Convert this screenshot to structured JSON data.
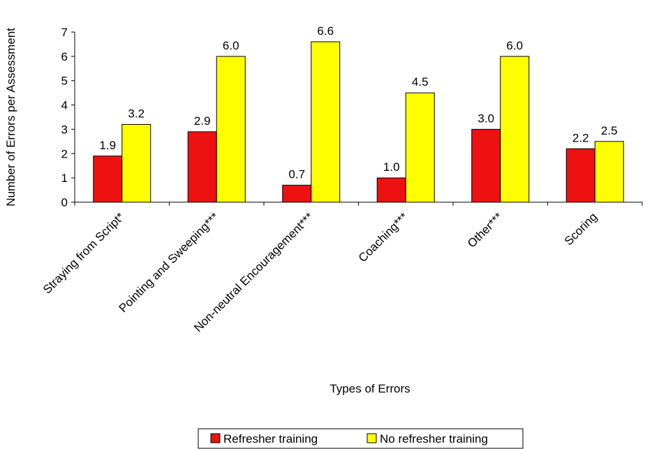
{
  "chart_data": {
    "type": "bar",
    "title": "",
    "xlabel": "Types of Errors",
    "ylabel": "Number of Errors per Assessment",
    "ylim": [
      0,
      7
    ],
    "yticks": [
      "0",
      "1",
      "2",
      "3",
      "4",
      "5",
      "6",
      "7"
    ],
    "categories": [
      "Straying from Script*",
      "Pointing and Sweeping***",
      "Non-neutral Encouragement***",
      "Coaching***",
      "Other***",
      "Scoring"
    ],
    "series": [
      {
        "name": "Refresher training",
        "color": "#ee1111",
        "values": [
          1.9,
          2.9,
          0.7,
          1.0,
          3.0,
          2.2
        ],
        "labels": [
          "1.9",
          "2.9",
          "0.7",
          "1.0",
          "3.0",
          "2.2"
        ]
      },
      {
        "name": "No refresher training",
        "color": "#ffff00",
        "values": [
          3.2,
          6.0,
          6.6,
          4.5,
          6.0,
          2.5
        ],
        "labels": [
          "3.2",
          "6.0",
          "6.6",
          "4.5",
          "6.0",
          "2.5"
        ]
      }
    ],
    "grid": false,
    "legend_position": "bottom"
  }
}
